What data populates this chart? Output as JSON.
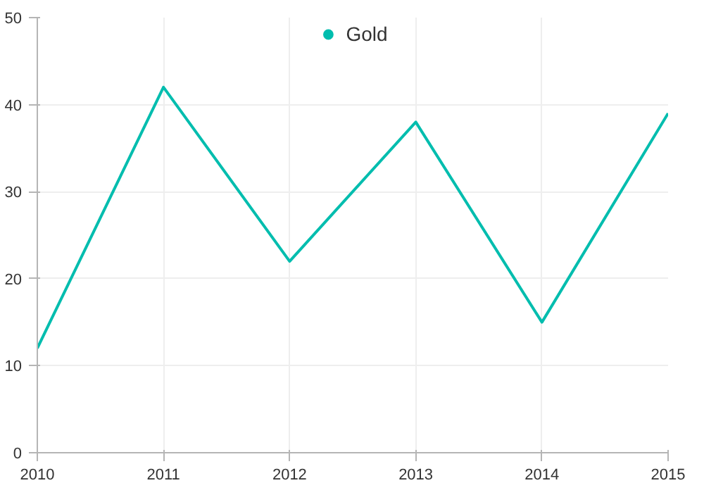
{
  "chart_data": {
    "type": "line",
    "x": [
      2010,
      2011,
      2012,
      2013,
      2014,
      2015
    ],
    "series": [
      {
        "name": "Gold",
        "color": "#00bdae",
        "values": [
          12,
          42,
          22,
          38,
          15,
          39
        ]
      }
    ],
    "xlim": [
      2010,
      2015
    ],
    "xticks": [
      {
        "value": 2010,
        "label": "2010"
      },
      {
        "value": 2011,
        "label": "2011"
      },
      {
        "value": 2012,
        "label": "2012"
      },
      {
        "value": 2013,
        "label": "2013"
      },
      {
        "value": 2014,
        "label": "2014"
      },
      {
        "value": 2015,
        "label": "2015"
      }
    ],
    "ylim": [
      0,
      50
    ],
    "yticks": [
      0,
      10,
      20,
      30,
      40,
      50
    ],
    "grid": true,
    "legend": "top",
    "marker": "none",
    "line_style": "solid"
  }
}
